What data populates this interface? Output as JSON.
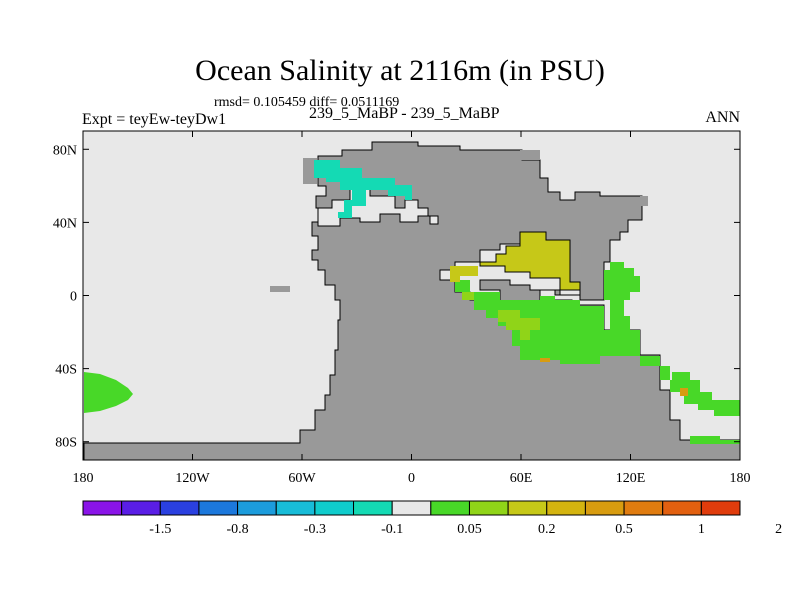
{
  "title": "Ocean Salinity at 2116m (in PSU)",
  "stats_text": "rmsd= 0.105459 diff= 0.0511169",
  "experiment_label": "Expt = teyEw-teyDw1",
  "case_label": "239_5_MaBP - 239_5_MaBP",
  "period_label": "ANN",
  "chart_data": {
    "type": "heatmap",
    "title": "Ocean Salinity at 2116m (in PSU)",
    "units": "PSU",
    "depth": "2116m",
    "x_axis": {
      "range": [
        -180,
        180
      ],
      "ticks": [
        {
          "value": -180,
          "label": "180"
        },
        {
          "value": -120,
          "label": "120W"
        },
        {
          "value": -60,
          "label": "60W"
        },
        {
          "value": 0,
          "label": "0"
        },
        {
          "value": 60,
          "label": "60E"
        },
        {
          "value": 120,
          "label": "120E"
        },
        {
          "value": 180,
          "label": "180"
        }
      ]
    },
    "y_axis": {
      "range": [
        -90,
        90
      ],
      "ticks": [
        {
          "value": 80,
          "label": "80N"
        },
        {
          "value": 40,
          "label": "40N"
        },
        {
          "value": 0,
          "label": "0"
        },
        {
          "value": -40,
          "label": "40S"
        },
        {
          "value": -80,
          "label": "80S"
        }
      ]
    },
    "colorbar": {
      "colors": [
        "#8a14e8",
        "#5a1ee6",
        "#2a40e0",
        "#1c78dc",
        "#1c9cdc",
        "#18bcd8",
        "#10cccc",
        "#14dab4",
        "#e8e8e8",
        "#48d828",
        "#90d418",
        "#c6c818",
        "#d4b410",
        "#d89c10",
        "#e07c10",
        "#e26010",
        "#e03c0c"
      ],
      "labels": [
        {
          "boundary": 2,
          "text": "-1.5"
        },
        {
          "boundary": 4,
          "text": "-0.8"
        },
        {
          "boundary": 6,
          "text": "-0.3"
        },
        {
          "boundary": 8,
          "text": "-0.1"
        },
        {
          "boundary": 10,
          "text": "0.05"
        },
        {
          "boundary": 12,
          "text": "0.2"
        },
        {
          "boundary": 14,
          "text": "0.5"
        },
        {
          "boundary": 16,
          "text": "1"
        },
        {
          "boundary": 18,
          "text": "2"
        }
      ]
    },
    "fields": {
      "background_value_class": "0.05 (near zero, light gray)",
      "land_color": "#999999",
      "ocean_color": "#e8e8e8"
    }
  },
  "colors": {
    "land": "#999999",
    "ocean_zero": "#e8e8e8",
    "cyan_anomaly": "#14dab4",
    "green_anomaly": "#48d828",
    "yellowgreen_anomaly": "#90d418",
    "gold_anomaly": "#c6c818",
    "orange_anomaly": "#d89c10"
  }
}
